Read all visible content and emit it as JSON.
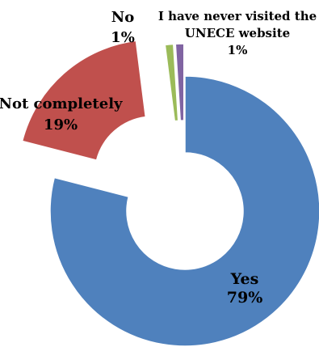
{
  "chart_data": {
    "type": "pie",
    "variant": "exploded-doughnut",
    "title": "",
    "categories": [
      "Yes",
      "Not completely",
      "No",
      "I have never visited the UNECE website"
    ],
    "values": [
      79,
      19,
      1,
      1
    ],
    "value_labels": [
      "79%",
      "19%",
      "1%",
      "1%"
    ],
    "colors": [
      "#4F81BD",
      "#C0504D",
      "#9BBB59",
      "#8064A2"
    ],
    "label_lines": [
      [
        "Yes",
        "79%"
      ],
      [
        "Not completely",
        "19%"
      ],
      [
        "No",
        "1%"
      ],
      [
        "I have never visited the",
        "UNECE website",
        "1%"
      ]
    ],
    "legend": "none",
    "grid": false
  }
}
